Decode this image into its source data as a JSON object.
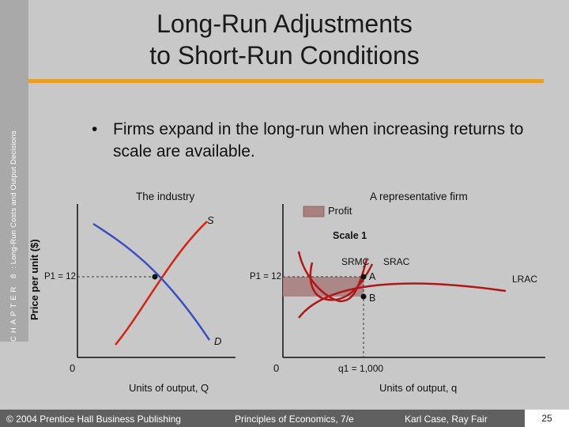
{
  "sidebar": {
    "chapter": "CHAPTER 8",
    "title": "Long-Run Costs and Output Decisions"
  },
  "slide": {
    "title_line1": "Long-Run Adjustments",
    "title_line2": "to Short-Run Conditions",
    "bullet": "Firms expand in the long-run when increasing returns to scale are available."
  },
  "industry": {
    "panel_title": "The industry",
    "y_axis_label": "Price per unit ($)",
    "x_axis_label": "Units of output, Q",
    "origin": "0",
    "price_label": "P1 = 12",
    "supply_label": "S",
    "demand_label": "D"
  },
  "firm": {
    "panel_title": "A representative firm",
    "legend_label": "Profit",
    "scale_label": "Scale 1",
    "x_axis_label": "Units of output, q",
    "origin": "0",
    "price_label": "P1 = 12",
    "quantity_label": "q1 = 1,000",
    "srmc_label": "SRMC",
    "srac_label": "SRAC",
    "lrac_label": "LRAC",
    "point_a": "A",
    "point_b": "B"
  },
  "footer": {
    "copyright": "© 2004 Prentice Hall Business Publishing",
    "book": "Principles of Economics, 7/e",
    "authors": "Karl Case, Ray Fair",
    "page": "25"
  },
  "colors": {
    "background": "#c8c8c8",
    "accent_rule": "#e8a020",
    "supply_curve": "#d62410",
    "demand_curve": "#3a4fc0",
    "cost_curves": "#b01818",
    "profit_fill": "#a88080"
  }
}
